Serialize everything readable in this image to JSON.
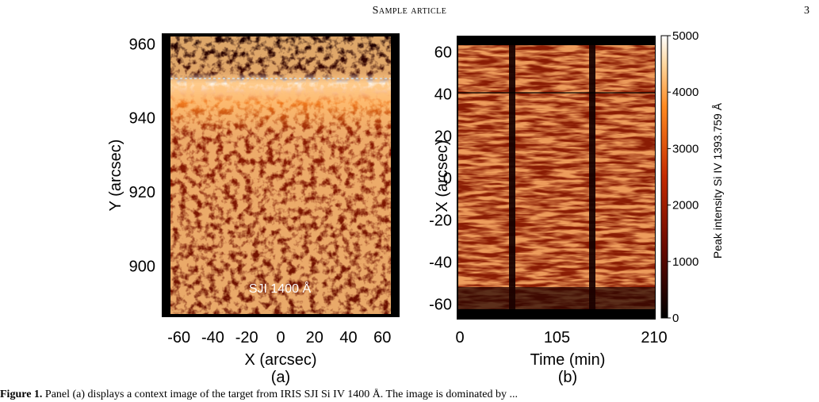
{
  "header": {
    "running_title": "Sample article",
    "page_number": "3"
  },
  "figure": {
    "panel_a": {
      "label": "(a)",
      "image_label": "SJI 1400 Å",
      "xlabel": "X (arcsec)",
      "ylabel": "Y (arcsec)",
      "x_ticks": [
        "-60",
        "-40",
        "-20",
        "0",
        "20",
        "40",
        "60"
      ],
      "y_ticks": [
        "960",
        "940",
        "920",
        "900"
      ]
    },
    "panel_b": {
      "label": "(b)",
      "xlabel": "Time (min)",
      "ylabel": "X (arcsec)",
      "x_ticks": [
        "0",
        "105",
        "210"
      ],
      "y_ticks": [
        "60",
        "40",
        "20",
        "0",
        "-20",
        "-40",
        "-60"
      ],
      "colorbar_label": "Peak intensity Si IV 1393.759 Å",
      "colorbar_ticks": [
        "5000",
        "4000",
        "3000",
        "2000",
        "1000",
        "0"
      ]
    }
  },
  "caption": {
    "label": "Figure 1.",
    "text": "Panel (a) displays a context image of the target from IRIS SJI Si IV 1400 Å. The image is dominated by ..."
  },
  "chart_data": [
    {
      "type": "heatmap",
      "title": "",
      "xlabel": "X (arcsec)",
      "ylabel": "Y (arcsec)",
      "xlim": [
        -65,
        65
      ],
      "ylim": [
        887,
        962
      ],
      "x_ticks": [
        -60,
        -40,
        -20,
        0,
        20,
        40,
        60
      ],
      "y_ticks": [
        900,
        920,
        940,
        960
      ],
      "annotations": [
        "SJI 1400 Å"
      ],
      "colormap": "hot",
      "limb_y": 949
    },
    {
      "type": "heatmap",
      "title": "",
      "xlabel": "Time (min)",
      "ylabel": "X (arcsec)",
      "xlim": [
        0,
        210
      ],
      "ylim": [
        -65,
        65
      ],
      "x_ticks": [
        0,
        105,
        210
      ],
      "y_ticks": [
        -60,
        -40,
        -20,
        0,
        20,
        40,
        60
      ],
      "colorbar": {
        "label": "Peak intensity Si IV 1393.759 Å",
        "range": [
          0,
          5000
        ],
        "ticks": [
          0,
          1000,
          2000,
          3000,
          4000,
          5000
        ]
      },
      "colormap": "hot",
      "reference_line_x": 40,
      "data_gap_times": [
        [
          40,
          45
        ],
        [
          122,
          128
        ]
      ]
    }
  ]
}
